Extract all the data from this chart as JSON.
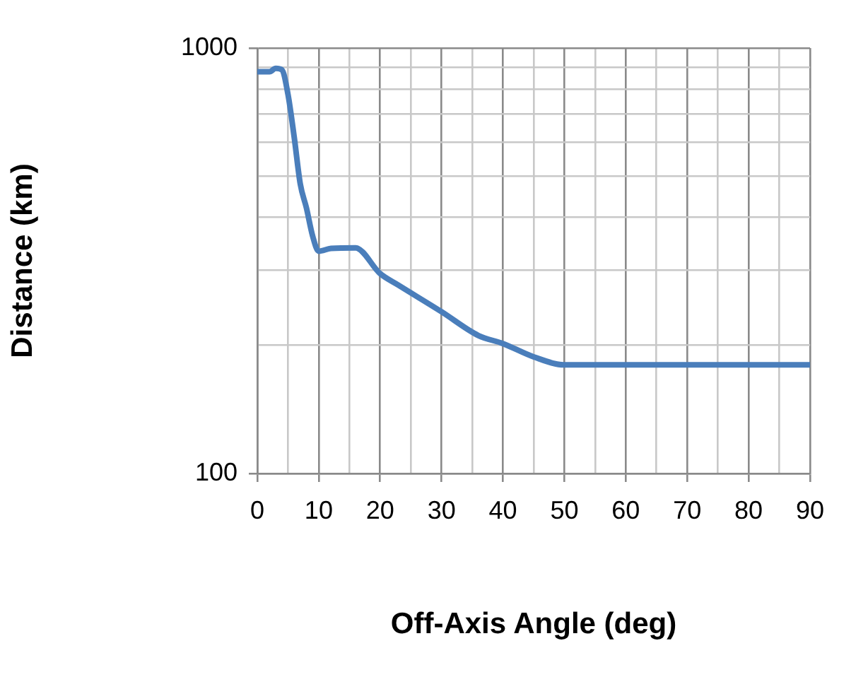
{
  "chart_data": {
    "type": "line",
    "xlabel": "Off-Axis Angle (deg)",
    "ylabel": "Distance (km)",
    "x": [
      0,
      2,
      3,
      4,
      5,
      6,
      7,
      8,
      9,
      10,
      12,
      16,
      20,
      23,
      30,
      36,
      40,
      45,
      50,
      60,
      70,
      80,
      90
    ],
    "series": [
      {
        "color": "#4a7ebb",
        "values": [
          880,
          880,
          896,
          889,
          778,
          619,
          479,
          421,
          362,
          333,
          338,
          339,
          295,
          277,
          240,
          211,
          202,
          188,
          180,
          180,
          180,
          180,
          180
        ]
      }
    ],
    "log": "y",
    "xlim": [
      0,
      90
    ],
    "ylim": [
      100,
      1000
    ],
    "xticks": [
      0,
      {
        "value": 5,
        "label": null
      },
      10,
      {
        "value": 15,
        "label": null
      },
      20,
      {
        "value": 25,
        "label": null
      },
      30,
      {
        "value": 35,
        "label": null
      },
      40,
      {
        "value": 45,
        "label": null
      },
      50,
      {
        "value": 55,
        "label": null
      },
      60,
      {
        "value": 65,
        "label": null
      },
      70,
      {
        "value": 75,
        "label": null
      },
      80,
      {
        "value": 85,
        "label": null
      },
      90
    ],
    "yticks": [
      100,
      {
        "value": 200,
        "label": null
      },
      {
        "value": 300,
        "label": null
      },
      {
        "value": 400,
        "label": null
      },
      {
        "value": 500,
        "label": null
      },
      {
        "value": 600,
        "label": null
      },
      {
        "value": 700,
        "label": null
      },
      {
        "value": 800,
        "label": null
      },
      {
        "value": 900,
        "label": null
      },
      1000
    ],
    "grid": true,
    "legend": false,
    "marker": "none",
    "line_style": "solid"
  }
}
